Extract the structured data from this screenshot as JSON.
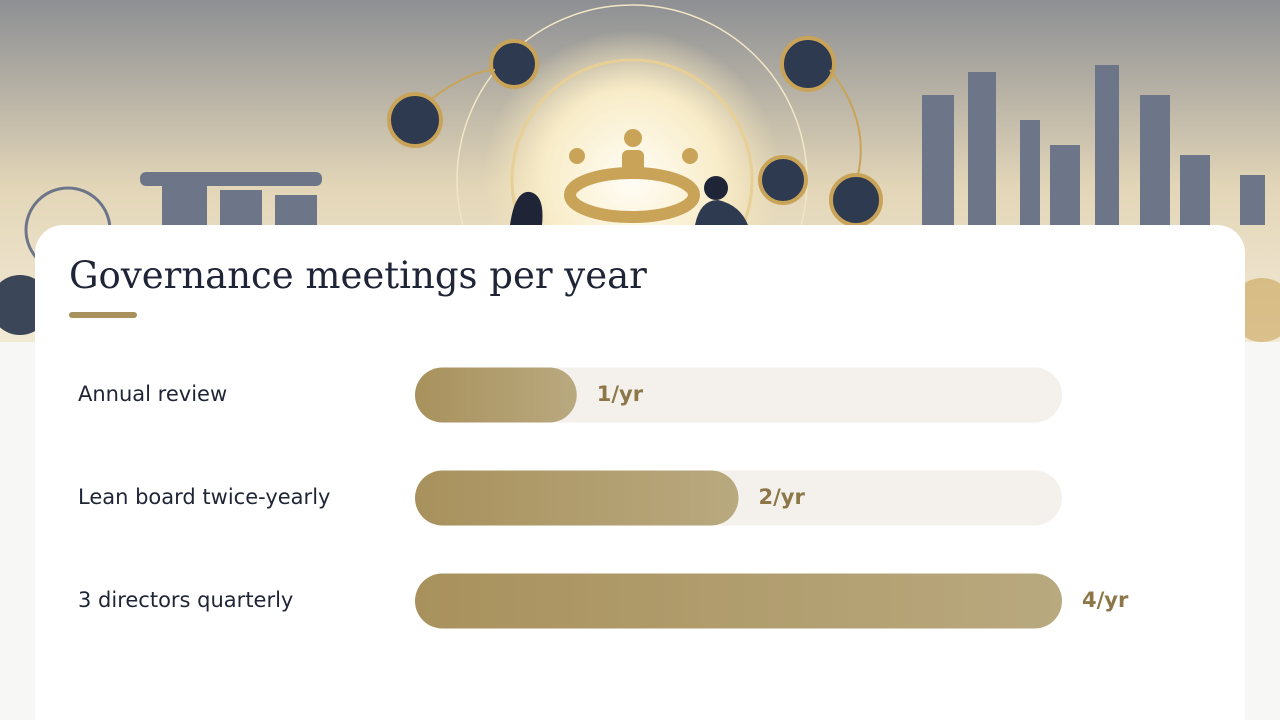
{
  "chart_data": {
    "type": "bar",
    "title": "Governance meetings per year",
    "categories": [
      "Annual review",
      "Lean board twice-yearly",
      "3 directors quarterly"
    ],
    "values": [
      1,
      2,
      4
    ],
    "value_labels": [
      "1/yr",
      "2/yr",
      "4/yr"
    ],
    "color": "#a8915c",
    "xlim": [
      0,
      4
    ]
  }
}
